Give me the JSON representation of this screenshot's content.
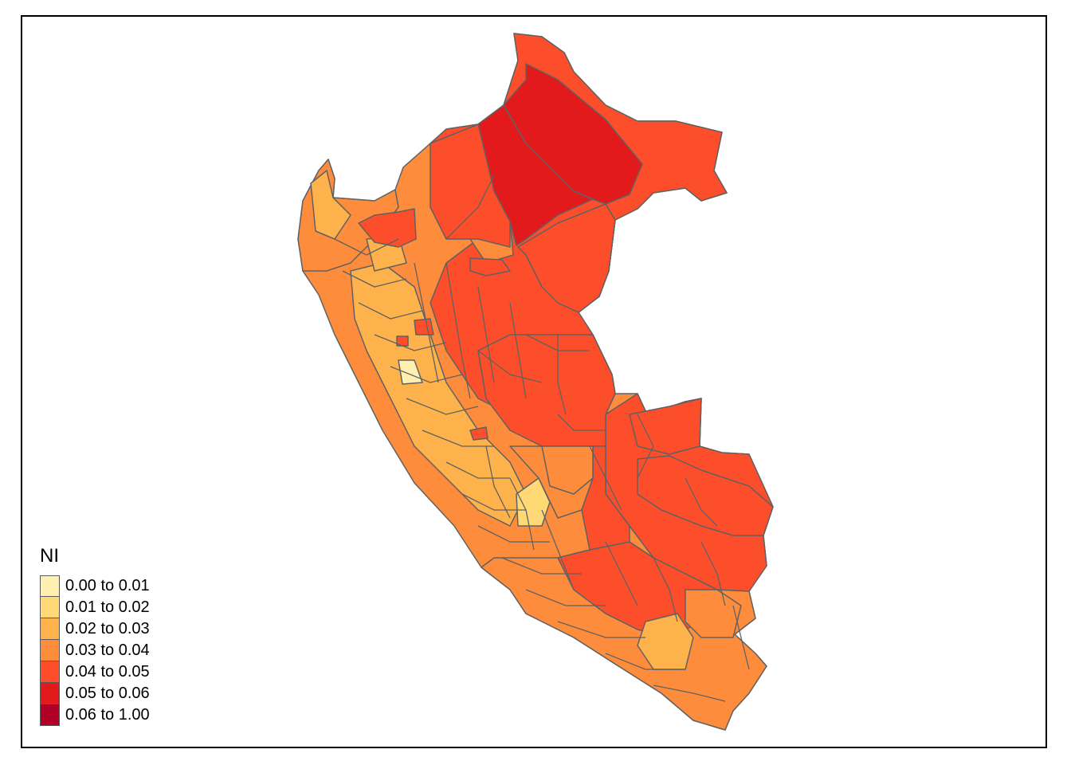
{
  "legend": {
    "title": "NI",
    "classes": [
      {
        "label": "0.00 to 0.01",
        "color": "#ffefb0"
      },
      {
        "label": "0.01 to 0.02",
        "color": "#fed976"
      },
      {
        "label": "0.02 to 0.03",
        "color": "#feb24c"
      },
      {
        "label": "0.03 to 0.04",
        "color": "#fd8d3c"
      },
      {
        "label": "0.04 to 0.05",
        "color": "#fc4e2a"
      },
      {
        "label": "0.05 to 0.06",
        "color": "#e31a1c"
      },
      {
        "label": "0.06 to 1.00",
        "color": "#b10026"
      }
    ]
  },
  "map": {
    "border_color": "#616161",
    "region_classes": [
      3,
      4,
      5,
      4,
      4,
      3,
      2,
      1,
      3,
      4,
      2,
      3,
      4,
      3,
      2,
      3,
      2,
      0,
      3,
      4
    ]
  }
}
